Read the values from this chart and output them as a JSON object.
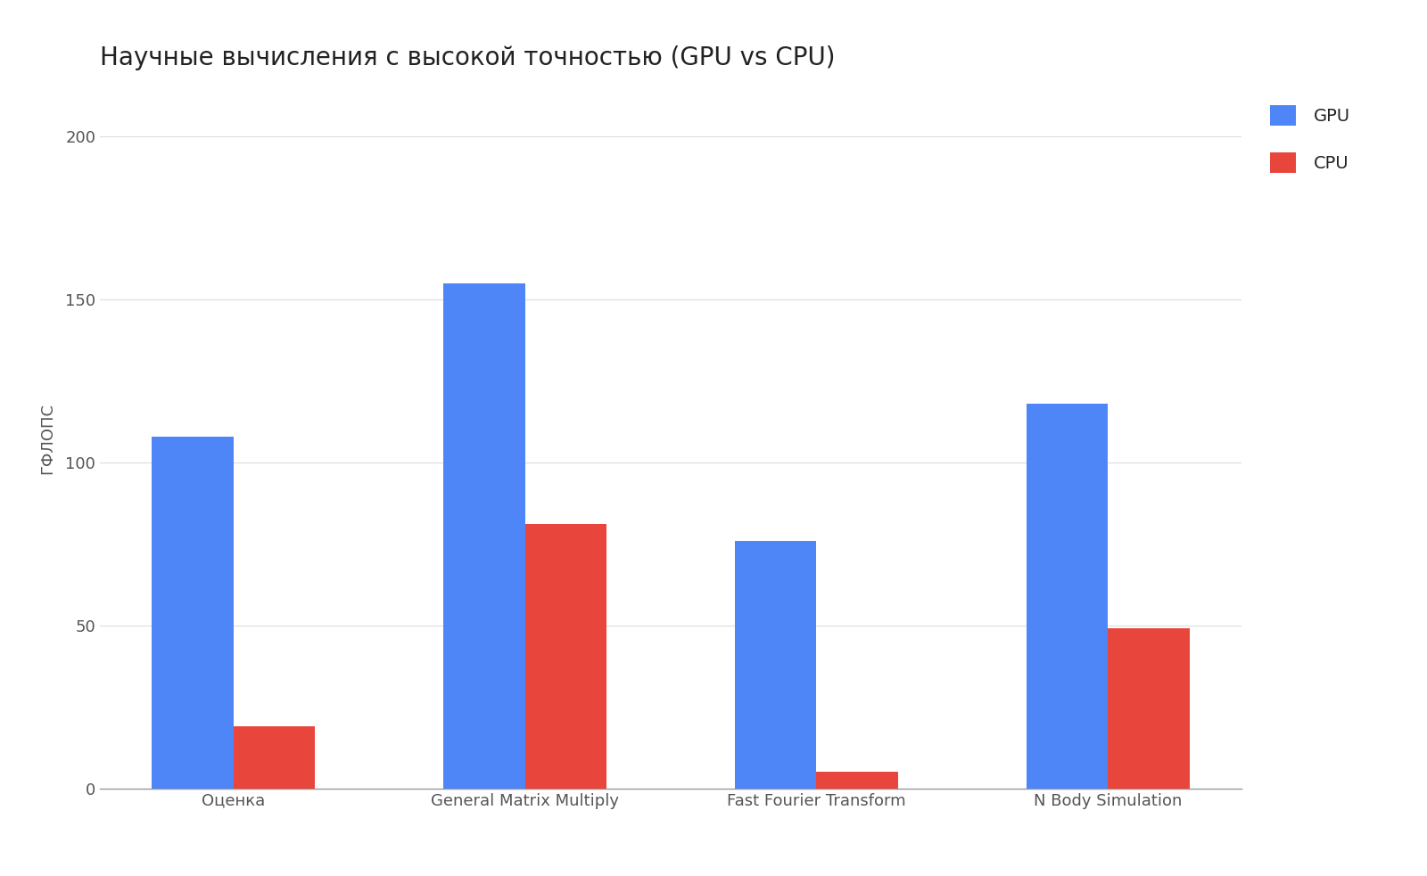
{
  "title": "Научные вычисления с высокой точностью (GPU vs CPU)",
  "categories": [
    "Оценка",
    "General Matrix Multiply",
    "Fast Fourier Transform",
    "N Body Simulation"
  ],
  "gpu_values": [
    108,
    155,
    76,
    118
  ],
  "cpu_values": [
    19,
    81,
    5,
    49
  ],
  "ylabel": "ГФЛОПС",
  "gpu_color": "#4f86f7",
  "cpu_color": "#E8453C",
  "background_color": "#FFFFFF",
  "grid_color": "#DDDDDD",
  "ylim": [
    0,
    215
  ],
  "yticks": [
    0,
    50,
    100,
    150,
    200
  ],
  "legend_labels": [
    "GPU",
    "CPU"
  ],
  "title_fontsize": 20,
  "label_fontsize": 13,
  "tick_fontsize": 13,
  "legend_fontsize": 14,
  "bar_width": 0.28
}
